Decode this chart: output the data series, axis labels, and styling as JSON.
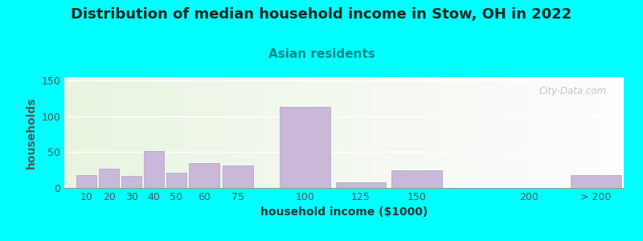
{
  "title": "Distribution of median household income in Stow, OH in 2022",
  "subtitle": "Asian residents",
  "xlabel": "household income ($1000)",
  "ylabel": "households",
  "title_fontsize": 13,
  "subtitle_fontsize": 11,
  "label_fontsize": 10,
  "tick_fontsize": 9,
  "background_color": "#00FFFF",
  "bar_color": "#C9B8D8",
  "bar_edge_color": "#B0A0C8",
  "categories": [
    "10",
    "20",
    "30",
    "40",
    "50",
    "60",
    "75",
    "100",
    "125",
    "150",
    "200",
    "> 200"
  ],
  "values": [
    18,
    27,
    17,
    52,
    21,
    35,
    31,
    113,
    8,
    25,
    0,
    18
  ],
  "x_positions": [
    10,
    20,
    30,
    40,
    50,
    60,
    75,
    100,
    125,
    150,
    200,
    230
  ],
  "bar_widths": [
    10,
    10,
    10,
    10,
    10,
    15,
    15,
    25,
    25,
    25,
    25,
    25
  ],
  "xlim_left": 5,
  "xlim_right": 255,
  "ylim": [
    0,
    155
  ],
  "yticks": [
    0,
    50,
    100,
    150
  ],
  "watermark": "City-Data.com",
  "title_color": "#222222",
  "subtitle_color": "#008888",
  "ylabel_color": "#555555",
  "xlabel_color": "#333333"
}
